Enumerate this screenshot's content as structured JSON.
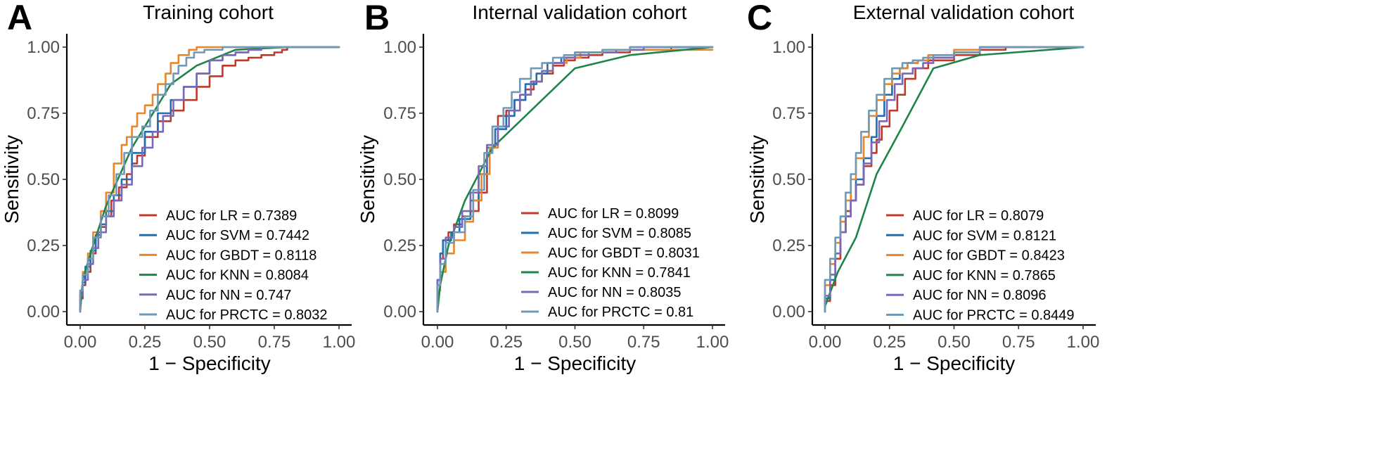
{
  "chart_data": [
    {
      "type": "line",
      "panel_letter": "A",
      "title": "Training cohort",
      "xlabel": "1 − Specificity",
      "ylabel": "Sensitivity",
      "xlim": [
        0,
        1
      ],
      "ylim": [
        0,
        1
      ],
      "x_ticks": [
        0,
        0.25,
        0.5,
        0.75,
        1
      ],
      "x_tick_labels": [
        "0.00",
        "0.25",
        "0.50",
        "0.75",
        "1.00"
      ],
      "y_ticks": [
        0,
        0.25,
        0.5,
        0.75,
        1
      ],
      "y_tick_labels": [
        "0.00",
        "0.25",
        "0.50",
        "0.75",
        "1.00"
      ],
      "grid": false,
      "legend_position": "bottom-right",
      "series": [
        {
          "name": "AUC for LR = 0.7389",
          "color": "#c0392b",
          "step": true,
          "x": [
            0,
            0.01,
            0.02,
            0.04,
            0.06,
            0.08,
            0.1,
            0.12,
            0.15,
            0.18,
            0.2,
            0.22,
            0.25,
            0.3,
            0.35,
            0.4,
            0.45,
            0.5,
            0.55,
            0.6,
            0.65,
            0.7,
            0.75,
            0.78,
            0.8,
            1
          ],
          "y": [
            0,
            0.05,
            0.1,
            0.15,
            0.22,
            0.28,
            0.32,
            0.36,
            0.42,
            0.47,
            0.52,
            0.56,
            0.59,
            0.66,
            0.72,
            0.76,
            0.8,
            0.85,
            0.89,
            0.93,
            0.95,
            0.96,
            0.97,
            0.98,
            0.99,
            1
          ]
        },
        {
          "name": "AUC for SVM = 0.7442",
          "color": "#1f6fb2",
          "step": true,
          "x": [
            0,
            0.01,
            0.02,
            0.04,
            0.06,
            0.08,
            0.1,
            0.13,
            0.16,
            0.2,
            0.25,
            0.3,
            0.35,
            0.4,
            0.45,
            0.5,
            0.55,
            0.6,
            0.65,
            0.7,
            0.8,
            1
          ],
          "y": [
            0,
            0.06,
            0.11,
            0.17,
            0.23,
            0.29,
            0.33,
            0.38,
            0.44,
            0.5,
            0.6,
            0.68,
            0.75,
            0.8,
            0.85,
            0.9,
            0.95,
            0.97,
            0.98,
            0.99,
            1,
            1
          ]
        },
        {
          "name": "AUC for GBDT = 0.8118",
          "color": "#e8862a",
          "step": true,
          "x": [
            0,
            0.01,
            0.03,
            0.05,
            0.08,
            0.1,
            0.13,
            0.16,
            0.18,
            0.2,
            0.22,
            0.25,
            0.28,
            0.3,
            0.33,
            0.35,
            0.38,
            0.42,
            0.45,
            0.5,
            0.55,
            0.6,
            0.7,
            1
          ],
          "y": [
            0,
            0.08,
            0.15,
            0.22,
            0.3,
            0.38,
            0.45,
            0.56,
            0.63,
            0.66,
            0.7,
            0.75,
            0.78,
            0.82,
            0.86,
            0.9,
            0.94,
            0.97,
            0.99,
            1,
            1,
            1,
            1,
            1
          ]
        },
        {
          "name": "AUC for KNN = 0.8084",
          "color": "#1e8449",
          "step": false,
          "x": [
            0,
            0.01,
            0.04,
            0.1,
            0.2,
            0.35,
            0.45,
            0.6,
            0.8,
            1
          ],
          "y": [
            0,
            0.12,
            0.22,
            0.4,
            0.62,
            0.86,
            0.93,
            0.99,
            1,
            1
          ]
        },
        {
          "name": "AUC for NN = 0.747",
          "color": "#7b68b8",
          "step": true,
          "x": [
            0,
            0.01,
            0.03,
            0.05,
            0.07,
            0.1,
            0.13,
            0.16,
            0.2,
            0.24,
            0.28,
            0.32,
            0.36,
            0.4,
            0.45,
            0.5,
            0.55,
            0.6,
            0.65,
            0.7,
            0.85,
            1
          ],
          "y": [
            0,
            0.06,
            0.12,
            0.18,
            0.24,
            0.3,
            0.36,
            0.42,
            0.48,
            0.55,
            0.62,
            0.68,
            0.74,
            0.8,
            0.85,
            0.9,
            0.95,
            0.97,
            0.98,
            0.99,
            1,
            1
          ]
        },
        {
          "name": "AUC for PRCTC = 0.8032",
          "color": "#6f99b5",
          "step": true,
          "x": [
            0,
            0.01,
            0.03,
            0.05,
            0.08,
            0.11,
            0.14,
            0.17,
            0.2,
            0.24,
            0.27,
            0.3,
            0.33,
            0.36,
            0.38,
            0.41,
            0.44,
            0.48,
            0.55,
            0.65,
            1
          ],
          "y": [
            0,
            0.08,
            0.14,
            0.2,
            0.28,
            0.36,
            0.44,
            0.52,
            0.6,
            0.66,
            0.7,
            0.76,
            0.82,
            0.86,
            0.9,
            0.93,
            0.96,
            0.98,
            0.99,
            1,
            1
          ]
        }
      ]
    },
    {
      "type": "line",
      "panel_letter": "B",
      "title": "Internal validation cohort",
      "xlabel": "1 − Specificity",
      "ylabel": "Sensitivity",
      "xlim": [
        0,
        1
      ],
      "ylim": [
        0,
        1
      ],
      "x_ticks": [
        0,
        0.25,
        0.5,
        0.75,
        1
      ],
      "x_tick_labels": [
        "0.00",
        "0.25",
        "0.50",
        "0.75",
        "1.00"
      ],
      "y_ticks": [
        0,
        0.25,
        0.5,
        0.75,
        1
      ],
      "y_tick_labels": [
        "0.00",
        "0.25",
        "0.50",
        "0.75",
        "1.00"
      ],
      "grid": false,
      "legend_position": "bottom-right",
      "series": [
        {
          "name": "AUC for LR = 0.8099",
          "color": "#c0392b",
          "step": true,
          "x": [
            0,
            0.01,
            0.02,
            0.04,
            0.06,
            0.09,
            0.12,
            0.15,
            0.18,
            0.2,
            0.22,
            0.25,
            0.28,
            0.32,
            0.35,
            0.38,
            0.42,
            0.46,
            0.5,
            0.55,
            0.6,
            0.7,
            0.85,
            1
          ],
          "y": [
            0,
            0.1,
            0.2,
            0.27,
            0.3,
            0.33,
            0.36,
            0.38,
            0.45,
            0.6,
            0.7,
            0.74,
            0.76,
            0.8,
            0.84,
            0.87,
            0.9,
            0.93,
            0.95,
            0.96,
            0.97,
            0.98,
            0.99,
            1
          ]
        },
        {
          "name": "AUC for SVM = 0.8085",
          "color": "#1f6fb2",
          "step": true,
          "x": [
            0,
            0.01,
            0.02,
            0.05,
            0.08,
            0.12,
            0.15,
            0.18,
            0.21,
            0.25,
            0.28,
            0.32,
            0.36,
            0.4,
            0.45,
            0.5,
            0.6,
            0.7,
            1
          ],
          "y": [
            0,
            0.12,
            0.22,
            0.27,
            0.3,
            0.35,
            0.42,
            0.52,
            0.62,
            0.69,
            0.74,
            0.8,
            0.86,
            0.9,
            0.94,
            0.96,
            0.98,
            0.99,
            1
          ]
        },
        {
          "name": "AUC for GBDT = 0.8031",
          "color": "#e8862a",
          "step": true,
          "x": [
            0,
            0.01,
            0.03,
            0.06,
            0.1,
            0.13,
            0.16,
            0.19,
            0.22,
            0.26,
            0.3,
            0.34,
            0.38,
            0.42,
            0.47,
            0.52,
            0.6,
            0.7,
            1
          ],
          "y": [
            0,
            0.08,
            0.15,
            0.22,
            0.27,
            0.34,
            0.42,
            0.52,
            0.62,
            0.7,
            0.76,
            0.82,
            0.87,
            0.91,
            0.94,
            0.96,
            0.98,
            0.99,
            0.99
          ]
        },
        {
          "name": "AUC for KNN = 0.7841",
          "color": "#1e8449",
          "step": false,
          "x": [
            0,
            0.01,
            0.04,
            0.1,
            0.2,
            0.3,
            0.4,
            0.5,
            0.7,
            1
          ],
          "y": [
            0,
            0.1,
            0.25,
            0.42,
            0.62,
            0.72,
            0.82,
            0.92,
            0.97,
            1
          ]
        },
        {
          "name": "AUC for NN = 0.8035",
          "color": "#7b68b8",
          "step": true,
          "x": [
            0,
            0.01,
            0.03,
            0.06,
            0.09,
            0.12,
            0.15,
            0.18,
            0.22,
            0.26,
            0.3,
            0.34,
            0.38,
            0.42,
            0.46,
            0.5,
            0.55,
            0.65,
            0.75,
            1
          ],
          "y": [
            0,
            0.12,
            0.2,
            0.28,
            0.32,
            0.38,
            0.45,
            0.55,
            0.63,
            0.7,
            0.76,
            0.82,
            0.87,
            0.91,
            0.94,
            0.96,
            0.97,
            0.98,
            0.99,
            1
          ]
        },
        {
          "name": "AUC for PRCTC = 0.81",
          "color": "#6f99b5",
          "step": true,
          "x": [
            0,
            0.01,
            0.03,
            0.06,
            0.1,
            0.13,
            0.17,
            0.2,
            0.24,
            0.27,
            0.3,
            0.34,
            0.38,
            0.42,
            0.46,
            0.5,
            0.6,
            0.7,
            1
          ],
          "y": [
            0,
            0.1,
            0.18,
            0.26,
            0.3,
            0.36,
            0.46,
            0.6,
            0.7,
            0.77,
            0.83,
            0.88,
            0.92,
            0.94,
            0.96,
            0.97,
            0.98,
            0.99,
            1
          ]
        }
      ]
    },
    {
      "type": "line",
      "panel_letter": "C",
      "title": "External validation cohort",
      "xlabel": "1 − Specificity",
      "ylabel": "Sensitivity",
      "xlim": [
        0,
        1
      ],
      "ylim": [
        0,
        1
      ],
      "x_ticks": [
        0,
        0.25,
        0.5,
        0.75,
        1
      ],
      "x_tick_labels": [
        "0.00",
        "0.25",
        "0.50",
        "0.75",
        "1.00"
      ],
      "y_ticks": [
        0,
        0.25,
        0.5,
        0.75,
        1
      ],
      "y_tick_labels": [
        "0.00",
        "0.25",
        "0.50",
        "0.75",
        "1.00"
      ],
      "grid": false,
      "legend_position": "bottom-right",
      "series": [
        {
          "name": "AUC for LR = 0.8079",
          "color": "#c0392b",
          "step": true,
          "x": [
            0,
            0.02,
            0.04,
            0.06,
            0.08,
            0.1,
            0.12,
            0.15,
            0.18,
            0.2,
            0.22,
            0.25,
            0.28,
            0.31,
            0.35,
            0.4,
            0.5,
            0.6,
            0.7,
            1
          ],
          "y": [
            0,
            0.04,
            0.1,
            0.2,
            0.3,
            0.38,
            0.42,
            0.48,
            0.55,
            0.6,
            0.65,
            0.7,
            0.76,
            0.82,
            0.88,
            0.92,
            0.95,
            0.97,
            0.99,
            1
          ]
        },
        {
          "name": "AUC for SVM = 0.8121",
          "color": "#1f6fb2",
          "step": true,
          "x": [
            0,
            0.02,
            0.04,
            0.06,
            0.08,
            0.1,
            0.12,
            0.15,
            0.18,
            0.2,
            0.23,
            0.26,
            0.29,
            0.32,
            0.36,
            0.4,
            0.5,
            0.6,
            0.7,
            1
          ],
          "y": [
            0,
            0.05,
            0.12,
            0.22,
            0.3,
            0.36,
            0.42,
            0.5,
            0.58,
            0.66,
            0.74,
            0.82,
            0.88,
            0.92,
            0.94,
            0.95,
            0.96,
            0.98,
            1,
            1
          ]
        },
        {
          "name": "AUC for GBDT = 0.8423",
          "color": "#e8862a",
          "step": true,
          "x": [
            0,
            0.02,
            0.04,
            0.06,
            0.08,
            0.1,
            0.12,
            0.15,
            0.17,
            0.2,
            0.23,
            0.26,
            0.29,
            0.32,
            0.36,
            0.4,
            0.5,
            0.6,
            1
          ],
          "y": [
            0,
            0.1,
            0.18,
            0.26,
            0.34,
            0.42,
            0.5,
            0.58,
            0.66,
            0.74,
            0.8,
            0.86,
            0.9,
            0.92,
            0.94,
            0.95,
            0.97,
            0.99,
            1
          ]
        },
        {
          "name": "AUC for KNN = 0.7865",
          "color": "#1e8449",
          "step": false,
          "x": [
            0,
            0.05,
            0.12,
            0.2,
            0.3,
            0.42,
            0.6,
            1
          ],
          "y": [
            0.02,
            0.15,
            0.28,
            0.52,
            0.7,
            0.92,
            0.97,
            1
          ]
        },
        {
          "name": "AUC for NN = 0.8096",
          "color": "#7b68b8",
          "step": true,
          "x": [
            0,
            0.02,
            0.04,
            0.06,
            0.08,
            0.1,
            0.12,
            0.15,
            0.18,
            0.21,
            0.24,
            0.27,
            0.3,
            0.34,
            0.38,
            0.42,
            0.5,
            0.6,
            1
          ],
          "y": [
            0,
            0.06,
            0.14,
            0.22,
            0.3,
            0.36,
            0.42,
            0.48,
            0.56,
            0.64,
            0.72,
            0.8,
            0.86,
            0.9,
            0.92,
            0.94,
            0.96,
            0.98,
            1
          ]
        },
        {
          "name": "AUC for PRCTC = 0.8449",
          "color": "#6f99b5",
          "step": true,
          "x": [
            0,
            0.02,
            0.04,
            0.06,
            0.08,
            0.1,
            0.12,
            0.14,
            0.17,
            0.2,
            0.23,
            0.26,
            0.3,
            0.34,
            0.38,
            0.42,
            0.5,
            0.6,
            1
          ],
          "y": [
            0,
            0.12,
            0.2,
            0.28,
            0.36,
            0.45,
            0.52,
            0.6,
            0.68,
            0.76,
            0.82,
            0.88,
            0.92,
            0.94,
            0.95,
            0.96,
            0.97,
            0.98,
            1
          ]
        }
      ]
    }
  ]
}
